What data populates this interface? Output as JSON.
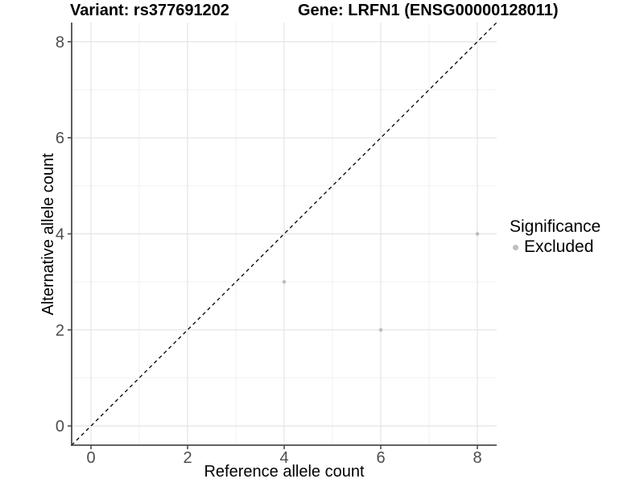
{
  "titles": {
    "variant": "Variant: rs377691202",
    "gene": "Gene: LRFN1 (ENSG00000128011)"
  },
  "legend": {
    "title": "Significance",
    "items": [
      {
        "label": "Excluded",
        "color": "#bebebe"
      }
    ]
  },
  "chart_data": {
    "type": "scatter",
    "title": "Variant: rs377691202   Gene: LRFN1 (ENSG00000128011)",
    "xlabel": "Reference allele count",
    "ylabel": "Alternative allele count",
    "xlim": [
      -0.4,
      8.4
    ],
    "ylim": [
      -0.4,
      8.4
    ],
    "x_ticks": [
      0,
      2,
      4,
      6,
      8
    ],
    "y_ticks": [
      0,
      2,
      4,
      6,
      8
    ],
    "x_minor_ticks": [
      1,
      3,
      5,
      7
    ],
    "y_minor_ticks": [
      1,
      3,
      5,
      7
    ],
    "grid": "major+minor",
    "legend_position": "right",
    "series": [
      {
        "name": "Excluded",
        "color": "#bebebe",
        "points": [
          {
            "x": 4,
            "y": 3
          },
          {
            "x": 6,
            "y": 2
          },
          {
            "x": 8,
            "y": 4
          }
        ]
      }
    ],
    "reference_line": {
      "kind": "identity y=x",
      "style": "dashed",
      "color": "#000000"
    }
  },
  "colors": {
    "background": "#ffffff",
    "major_grid": "#e4e4e4",
    "minor_grid": "#f0f0f0",
    "axis_line": "#4d4d4d",
    "tick_text": "#4d4d4d",
    "excluded_point": "#bebebe"
  }
}
